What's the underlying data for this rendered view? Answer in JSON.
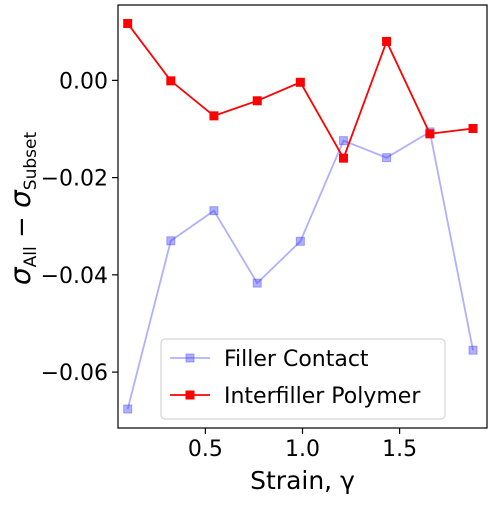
{
  "chart_data": {
    "type": "line",
    "xlabel": "Strain, γ",
    "ylabel": {
      "main_left": "σ",
      "sub_left": "All",
      "minus": " − ",
      "main_right": "σ",
      "sub_right": "Subset"
    },
    "xlim": [
      0.05,
      1.95
    ],
    "ylim": [
      -0.0715,
      0.0155
    ],
    "xticks": [
      {
        "value": 0.5,
        "label": "0.5"
      },
      {
        "value": 1.0,
        "label": "1.0"
      },
      {
        "value": 1.5,
        "label": "1.5"
      }
    ],
    "yticks": [
      {
        "value": 0.0,
        "label": "0.00"
      },
      {
        "value": -0.02,
        "label": "−0.02"
      },
      {
        "value": -0.04,
        "label": "−0.04"
      },
      {
        "value": -0.06,
        "label": "−0.06"
      }
    ],
    "grid": false,
    "legend_position": "lower-center",
    "series": [
      {
        "name": "Filler Contact",
        "color": "#3a3aff",
        "opacity": 0.4,
        "marker": "square",
        "x": [
          0.1,
          0.322,
          0.544,
          0.767,
          0.989,
          1.211,
          1.433,
          1.656,
          1.878
        ],
        "y": [
          -0.0676,
          -0.033,
          -0.0268,
          -0.0417,
          -0.0331,
          -0.0124,
          -0.0159,
          -0.0106,
          -0.0555
        ]
      },
      {
        "name": "Interfiller Polymer",
        "color": "#ff0000",
        "opacity": 1.0,
        "marker": "square",
        "x": [
          0.1,
          0.322,
          0.544,
          0.767,
          0.989,
          1.211,
          1.433,
          1.656,
          1.878
        ],
        "y": [
          0.0117,
          -0.0001,
          -0.0073,
          -0.0042,
          -0.0004,
          -0.016,
          0.008,
          -0.011,
          -0.0099
        ]
      }
    ]
  }
}
